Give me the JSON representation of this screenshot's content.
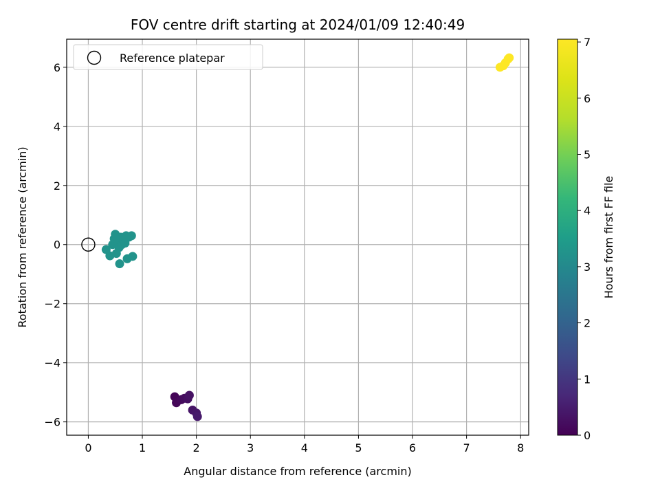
{
  "chart_data": {
    "type": "scatter",
    "title": "FOV centre drift starting at 2024/01/09 12:40:49",
    "xlabel": "Angular distance from reference (arcmin)",
    "ylabel": "Rotation from reference (arcmin)",
    "xlim": [
      -0.4,
      8.15
    ],
    "ylim": [
      -6.45,
      6.95
    ],
    "xticks": [
      0,
      1,
      2,
      3,
      4,
      5,
      6,
      7,
      8
    ],
    "xtick_labels": [
      "0",
      "1",
      "2",
      "3",
      "4",
      "5",
      "6",
      "7",
      "8"
    ],
    "yticks": [
      -6,
      -4,
      -2,
      0,
      2,
      4,
      6
    ],
    "ytick_labels": [
      "−6",
      "−4",
      "−2",
      "0",
      "2",
      "4",
      "6"
    ],
    "grid": true,
    "legend": {
      "position": "top-left",
      "entries": [
        "Reference platepar"
      ]
    },
    "reference_point": {
      "x": 0,
      "y": 0
    },
    "colorbar": {
      "label": "Hours from first FF file",
      "colormap": "viridis",
      "range": [
        0,
        7.05
      ],
      "ticks": [
        0,
        1,
        2,
        3,
        4,
        5,
        6,
        7
      ],
      "tick_labels": [
        "0",
        "1",
        "2",
        "3",
        "4",
        "5",
        "6",
        "7"
      ]
    },
    "points": [
      {
        "x": 1.6,
        "y": -5.15,
        "hours": 0.05
      },
      {
        "x": 1.63,
        "y": -5.35,
        "hours": 0.1
      },
      {
        "x": 1.72,
        "y": -5.25,
        "hours": 0.15
      },
      {
        "x": 1.78,
        "y": -5.2,
        "hours": 0.2
      },
      {
        "x": 1.84,
        "y": -5.22,
        "hours": 0.25
      },
      {
        "x": 1.87,
        "y": -5.1,
        "hours": 0.3
      },
      {
        "x": 1.93,
        "y": -5.6,
        "hours": 0.35
      },
      {
        "x": 2.0,
        "y": -5.7,
        "hours": 0.4
      },
      {
        "x": 2.02,
        "y": -5.82,
        "hours": 0.45
      },
      {
        "x": 0.33,
        "y": -0.17,
        "hours": 3.25
      },
      {
        "x": 0.4,
        "y": -0.38,
        "hours": 3.25
      },
      {
        "x": 0.45,
        "y": 0.0,
        "hours": 3.25
      },
      {
        "x": 0.48,
        "y": 0.2,
        "hours": 3.25
      },
      {
        "x": 0.5,
        "y": 0.35,
        "hours": 3.25
      },
      {
        "x": 0.52,
        "y": -0.3,
        "hours": 3.25
      },
      {
        "x": 0.55,
        "y": 0.1,
        "hours": 3.25
      },
      {
        "x": 0.57,
        "y": -0.1,
        "hours": 3.25
      },
      {
        "x": 0.58,
        "y": -0.65,
        "hours": 3.25
      },
      {
        "x": 0.6,
        "y": 0.25,
        "hours": 3.25
      },
      {
        "x": 0.62,
        "y": 0.0,
        "hours": 3.25
      },
      {
        "x": 0.65,
        "y": 0.15,
        "hours": 3.25
      },
      {
        "x": 0.68,
        "y": 0.05,
        "hours": 3.25
      },
      {
        "x": 0.7,
        "y": 0.3,
        "hours": 3.25
      },
      {
        "x": 0.72,
        "y": -0.48,
        "hours": 3.25
      },
      {
        "x": 0.75,
        "y": 0.25,
        "hours": 3.25
      },
      {
        "x": 0.8,
        "y": 0.3,
        "hours": 3.25
      },
      {
        "x": 0.82,
        "y": -0.4,
        "hours": 3.25
      },
      {
        "x": 7.62,
        "y": 6.0,
        "hours": 7.05
      },
      {
        "x": 7.68,
        "y": 6.05,
        "hours": 7.05
      },
      {
        "x": 7.72,
        "y": 6.15,
        "hours": 7.05
      },
      {
        "x": 7.77,
        "y": 6.28,
        "hours": 7.05
      },
      {
        "x": 7.79,
        "y": 6.32,
        "hours": 7.05
      }
    ]
  }
}
